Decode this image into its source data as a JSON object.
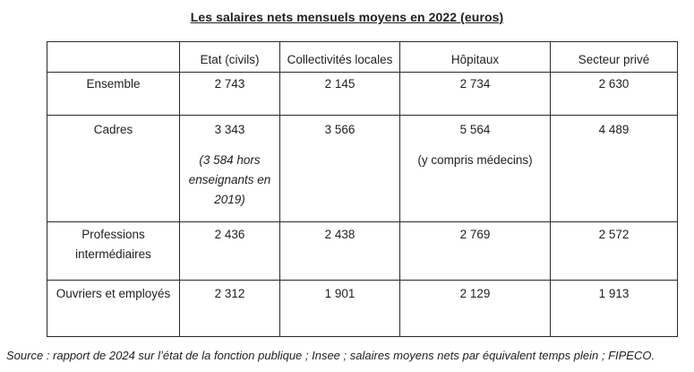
{
  "title": "Les salaires nets mensuels moyens en 2022 (euros)",
  "columns": [
    "",
    "Etat (civils)",
    "Collectivités locales",
    "Hôpitaux",
    "Secteur privé"
  ],
  "rows": [
    {
      "label": "Ensemble",
      "values": [
        "2 743",
        "2 145",
        "2 734",
        "2 630"
      ]
    },
    {
      "label": "Cadres",
      "values": [
        "3 343",
        "3 566",
        "5 564",
        "4 489"
      ],
      "notes": {
        "etat": "(3 584 hors enseignants en 2019)",
        "hopitaux": "(y compris médecins)"
      }
    },
    {
      "label": "Professions intermédiaires",
      "values": [
        "2 436",
        "2 438",
        "2 769",
        "2 572"
      ]
    },
    {
      "label": "Ouvriers et employés",
      "values": [
        "2 312",
        "1 901",
        "2 129",
        "1 913"
      ]
    }
  ],
  "source": "Source : rapport de 2024 sur l’état de la fonction publique ; Insee ; salaires moyens nets par équivalent temps plein ; FIPECO."
}
